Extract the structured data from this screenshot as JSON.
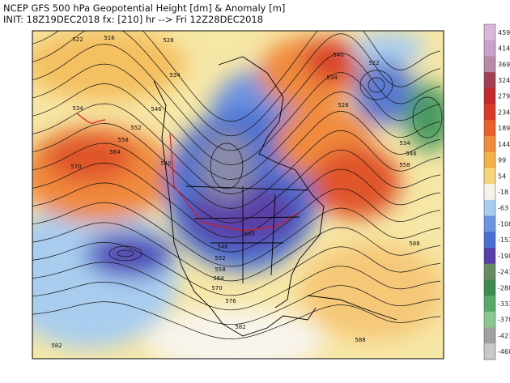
{
  "header": {
    "line1": "NCEP GFS 500 hPa Geopotential Height [dm] & Anomaly [m]",
    "line2": "INIT: 18Z19DEC2018 fx: [210] hr --> Fri 12Z28DEC2018"
  },
  "colorbar": {
    "ticks": [
      459,
      414,
      369,
      324,
      279,
      234,
      189,
      144,
      99,
      54,
      -18,
      -63,
      -108,
      -153,
      -198,
      -243,
      -288,
      -333,
      -378,
      -423,
      -468
    ],
    "colors": [
      "#d8b8d8",
      "#c8a0c8",
      "#b88aa8",
      "#a04050",
      "#c02a2a",
      "#d83a2a",
      "#e8602a",
      "#f08a3c",
      "#f4b04a",
      "#f6d47a",
      "#f8f4ec",
      "#a9cdef",
      "#6e93e0",
      "#4a6fd0",
      "#5b3fa8",
      "#6a8a60",
      "#3f8a50",
      "#58a868",
      "#8ac890",
      "#a0a0a0",
      "#c8c8c8"
    ]
  },
  "contour_labels": [
    522,
    516,
    528,
    534,
    546,
    534,
    552,
    558,
    564,
    570,
    540,
    534,
    528,
    522,
    540,
    534,
    546,
    558,
    540,
    546,
    552,
    558,
    564,
    570,
    576,
    582,
    588,
    588,
    582
  ]
}
